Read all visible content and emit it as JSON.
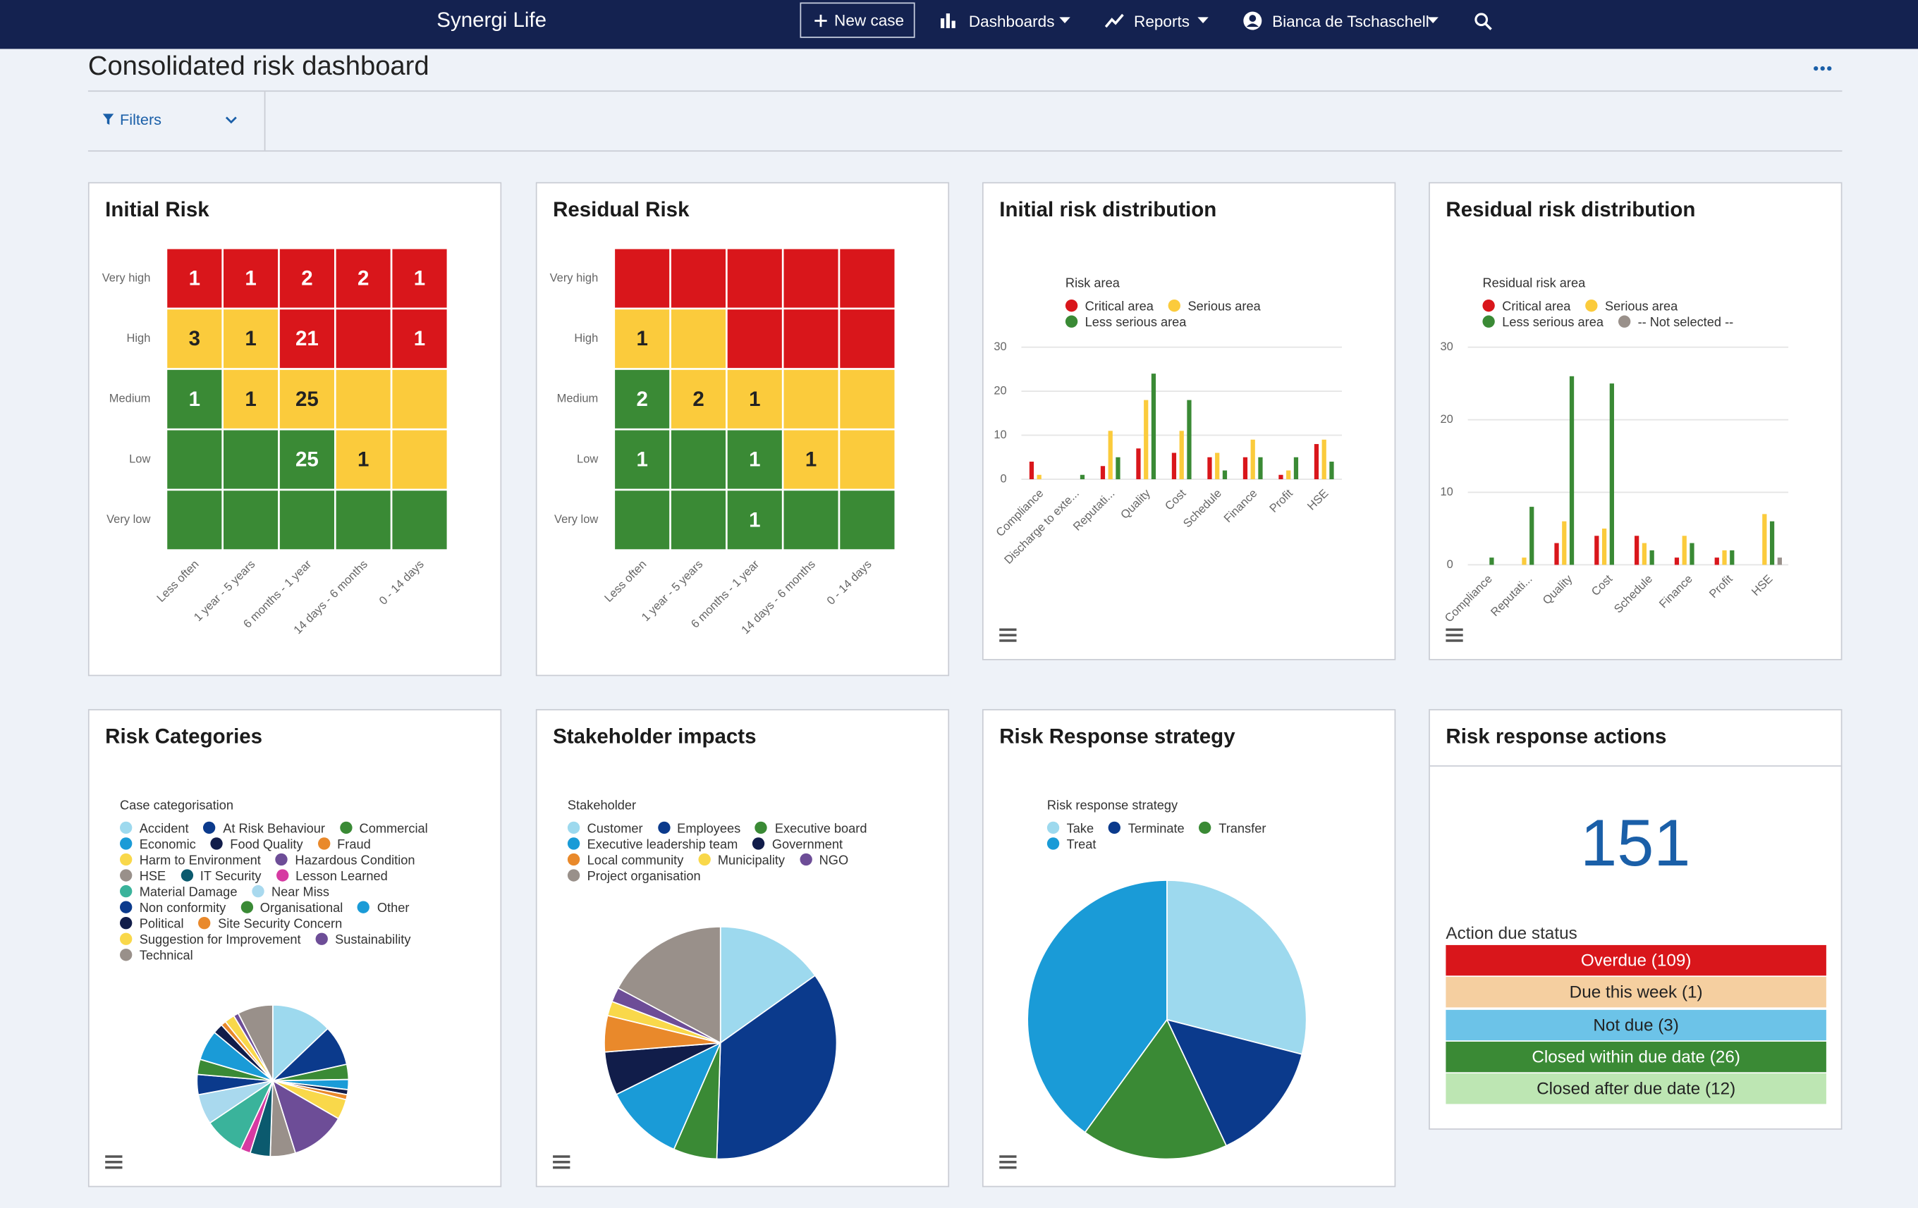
{
  "nav": {
    "brand": "Synergi Life",
    "new_case": "New case",
    "dashboards": "Dashboards",
    "reports": "Reports",
    "user": "Bianca de Tschaschell"
  },
  "header": {
    "title": "Consolidated risk dashboard",
    "filters": "Filters"
  },
  "chart_data": [
    {
      "type": "heatmap",
      "title": "Initial Risk",
      "rows": [
        "Very high",
        "High",
        "Medium",
        "Low",
        "Very low"
      ],
      "columns": [
        "Less often",
        "1 year - 5 years",
        "6 months - 1 year",
        "14 days - 6 months",
        "0 - 14 days"
      ],
      "values": [
        [
          1,
          1,
          2,
          2,
          1
        ],
        [
          3,
          1,
          21,
          null,
          1
        ],
        [
          1,
          1,
          25,
          null,
          null
        ],
        [
          null,
          null,
          25,
          1,
          null
        ],
        [
          null,
          null,
          null,
          null,
          null
        ]
      ],
      "colors": [
        [
          "#d9161b",
          "#d9161b",
          "#d9161b",
          "#d9161b",
          "#d9161b"
        ],
        [
          "#fbcb3c",
          "#fbcb3c",
          "#d9161b",
          "#d9161b",
          "#d9161b"
        ],
        [
          "#3a8a35",
          "#fbcb3c",
          "#fbcb3c",
          "#fbcb3c",
          "#fbcb3c"
        ],
        [
          "#3a8a35",
          "#3a8a35",
          "#3a8a35",
          "#fbcb3c",
          "#fbcb3c"
        ],
        [
          "#3a8a35",
          "#3a8a35",
          "#3a8a35",
          "#3a8a35",
          "#3a8a35"
        ]
      ]
    },
    {
      "type": "heatmap",
      "title": "Residual Risk",
      "rows": [
        "Very high",
        "High",
        "Medium",
        "Low",
        "Very low"
      ],
      "columns": [
        "Less often",
        "1 year - 5 years",
        "6 months - 1 year",
        "14 days - 6 months",
        "0 - 14 days"
      ],
      "values": [
        [
          null,
          null,
          null,
          null,
          null
        ],
        [
          1,
          null,
          null,
          null,
          null
        ],
        [
          2,
          2,
          1,
          null,
          null
        ],
        [
          1,
          null,
          1,
          1,
          null
        ],
        [
          null,
          null,
          1,
          null,
          null
        ]
      ],
      "colors": [
        [
          "#d9161b",
          "#d9161b",
          "#d9161b",
          "#d9161b",
          "#d9161b"
        ],
        [
          "#fbcb3c",
          "#fbcb3c",
          "#d9161b",
          "#d9161b",
          "#d9161b"
        ],
        [
          "#3a8a35",
          "#fbcb3c",
          "#fbcb3c",
          "#fbcb3c",
          "#fbcb3c"
        ],
        [
          "#3a8a35",
          "#3a8a35",
          "#3a8a35",
          "#fbcb3c",
          "#fbcb3c"
        ],
        [
          "#3a8a35",
          "#3a8a35",
          "#3a8a35",
          "#3a8a35",
          "#3a8a35"
        ]
      ]
    },
    {
      "type": "bar",
      "title": "Initial risk distribution",
      "legend_title": "Risk area",
      "categories": [
        "Compliance",
        "Discharge to exte...",
        "Reputati...",
        "Quality",
        "Cost",
        "Schedule",
        "Finance",
        "Profit",
        "HSE"
      ],
      "series": [
        {
          "name": "Critical area",
          "color": "#d9161b",
          "values": [
            4,
            0,
            3,
            7,
            6,
            5,
            5,
            1,
            8
          ]
        },
        {
          "name": "Serious area",
          "color": "#fbcb3c",
          "values": [
            1,
            0,
            11,
            18,
            11,
            6,
            9,
            2,
            9
          ]
        },
        {
          "name": "Less serious area",
          "color": "#3a8a35",
          "values": [
            0,
            1,
            5,
            24,
            18,
            2,
            5,
            5,
            4
          ]
        }
      ],
      "ylim": [
        0,
        30
      ],
      "yticks": [
        0,
        10,
        20,
        30
      ],
      "grid": true
    },
    {
      "type": "bar",
      "title": "Residual risk distribution",
      "legend_title": "Residual risk area",
      "categories": [
        "Compliance",
        "Reputati...",
        "Quality",
        "Cost",
        "Schedule",
        "Finance",
        "Profit",
        "HSE"
      ],
      "series": [
        {
          "name": "Critical area",
          "color": "#d9161b",
          "values": [
            0,
            0,
            3,
            4,
            4,
            1,
            1,
            0
          ]
        },
        {
          "name": "Serious area",
          "color": "#fbcb3c",
          "values": [
            0,
            1,
            6,
            5,
            3,
            4,
            2,
            7
          ]
        },
        {
          "name": "Less serious area",
          "color": "#3a8a35",
          "values": [
            1,
            8,
            26,
            25,
            2,
            3,
            2,
            6
          ]
        },
        {
          "name": "-- Not selected --",
          "color": "#99908a",
          "values": [
            0,
            0,
            0,
            0,
            0,
            0,
            0,
            1
          ]
        }
      ],
      "ylim": [
        0,
        30
      ],
      "yticks": [
        0,
        10,
        20,
        30
      ],
      "grid": true
    },
    {
      "type": "pie",
      "title": "Risk Categories",
      "legend_title": "Case categorisation",
      "categories": [
        "Accident",
        "At Risk Behaviour",
        "Commercial",
        "Economic",
        "Food Quality",
        "Fraud",
        "Harm to Environment",
        "Hazardous Condition",
        "HSE",
        "IT Security",
        "Lesson Learned",
        "Material Damage",
        "Near Miss",
        "Non conformity",
        "Organisational",
        "Other",
        "Political",
        "Site Security Concern",
        "Suggestion for Improvement",
        "Sustainability",
        "Technical"
      ],
      "values": [
        12,
        8,
        3,
        2,
        1,
        1,
        4,
        11,
        5,
        4,
        2,
        8,
        6,
        4,
        3,
        6,
        2,
        1,
        2,
        1,
        7
      ],
      "colors": [
        "#9dd9ee",
        "#0b3a8c",
        "#3a8a35",
        "#1a9bd7",
        "#111d4a",
        "#e9892b",
        "#f9d84a",
        "#6d4d97",
        "#99908a",
        "#0b5a6e",
        "#d63aa2",
        "#3ab39b",
        "#a9d9ee",
        "#0b3a8c",
        "#3a8a35",
        "#1a9bd7",
        "#111d4a",
        "#e9892b",
        "#f9d84a",
        "#6d4d97",
        "#99908a"
      ]
    },
    {
      "type": "pie",
      "title": "Stakeholder impacts",
      "legend_title": "Stakeholder",
      "categories": [
        "Customer",
        "Employees",
        "Executive board",
        "Executive leadership team",
        "Government",
        "Local community",
        "Municipality",
        "NGO",
        "Project organisation"
      ],
      "values": [
        15,
        35,
        6,
        11,
        6,
        5,
        2,
        2,
        17
      ],
      "colors": [
        "#9dd9ee",
        "#0b3a8c",
        "#3a8a35",
        "#1a9bd7",
        "#111d4a",
        "#e9892b",
        "#f9d84a",
        "#6d4d97",
        "#99908a"
      ]
    },
    {
      "type": "pie",
      "title": "Risk Response strategy",
      "legend_title": "Risk response strategy",
      "categories": [
        "Take",
        "Terminate",
        "Transfer",
        "Treat"
      ],
      "values": [
        29,
        14,
        17,
        40
      ],
      "colors": [
        "#9dd9ee",
        "#0b3a8c",
        "#3a8a35",
        "#1a9bd7"
      ]
    }
  ],
  "actions": {
    "title": "Risk response actions",
    "total": 151,
    "status_title": "Action due status",
    "statuses": [
      {
        "label": "Overdue (109)",
        "color": "#d9161b",
        "text_color": "#ffffff"
      },
      {
        "label": "Due this week (1)",
        "color": "#f5cfa0",
        "text_color": "#222222"
      },
      {
        "label": "Not due (3)",
        "color": "#6cc3e8",
        "text_color": "#222222"
      },
      {
        "label": "Closed within due date (26)",
        "color": "#3a8a35",
        "text_color": "#ffffff"
      },
      {
        "label": "Closed after due date (12)",
        "color": "#bde6b3",
        "text_color": "#222222"
      }
    ]
  }
}
